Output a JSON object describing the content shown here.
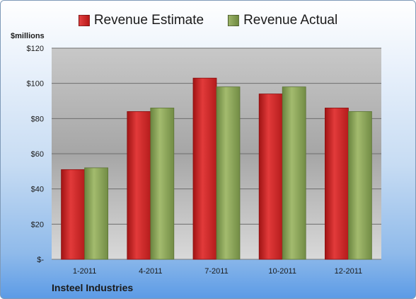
{
  "chart_data": {
    "type": "bar",
    "title": "",
    "subtitle": "",
    "categories": [
      "1-2011",
      "4-2011",
      "7-2011",
      "10-2011",
      "12-2011"
    ],
    "series": [
      {
        "name": "Revenue Estimate",
        "color": "#cc2222",
        "values": [
          51,
          84,
          103,
          94,
          86
        ]
      },
      {
        "name": "Revenue Actual",
        "color": "#7f9a4c",
        "values": [
          52,
          86,
          98,
          98,
          84
        ]
      }
    ],
    "ylabel": "$millions",
    "ylim": [
      0,
      120
    ],
    "yticks": [
      0,
      20,
      40,
      60,
      80,
      100,
      120
    ],
    "ytick_labels": [
      "$-",
      "$20",
      "$40",
      "$60",
      "$80",
      "$100",
      "$120"
    ],
    "grid": true,
    "legend_position": "top"
  },
  "footer": {
    "company": "Insteel Industries"
  }
}
